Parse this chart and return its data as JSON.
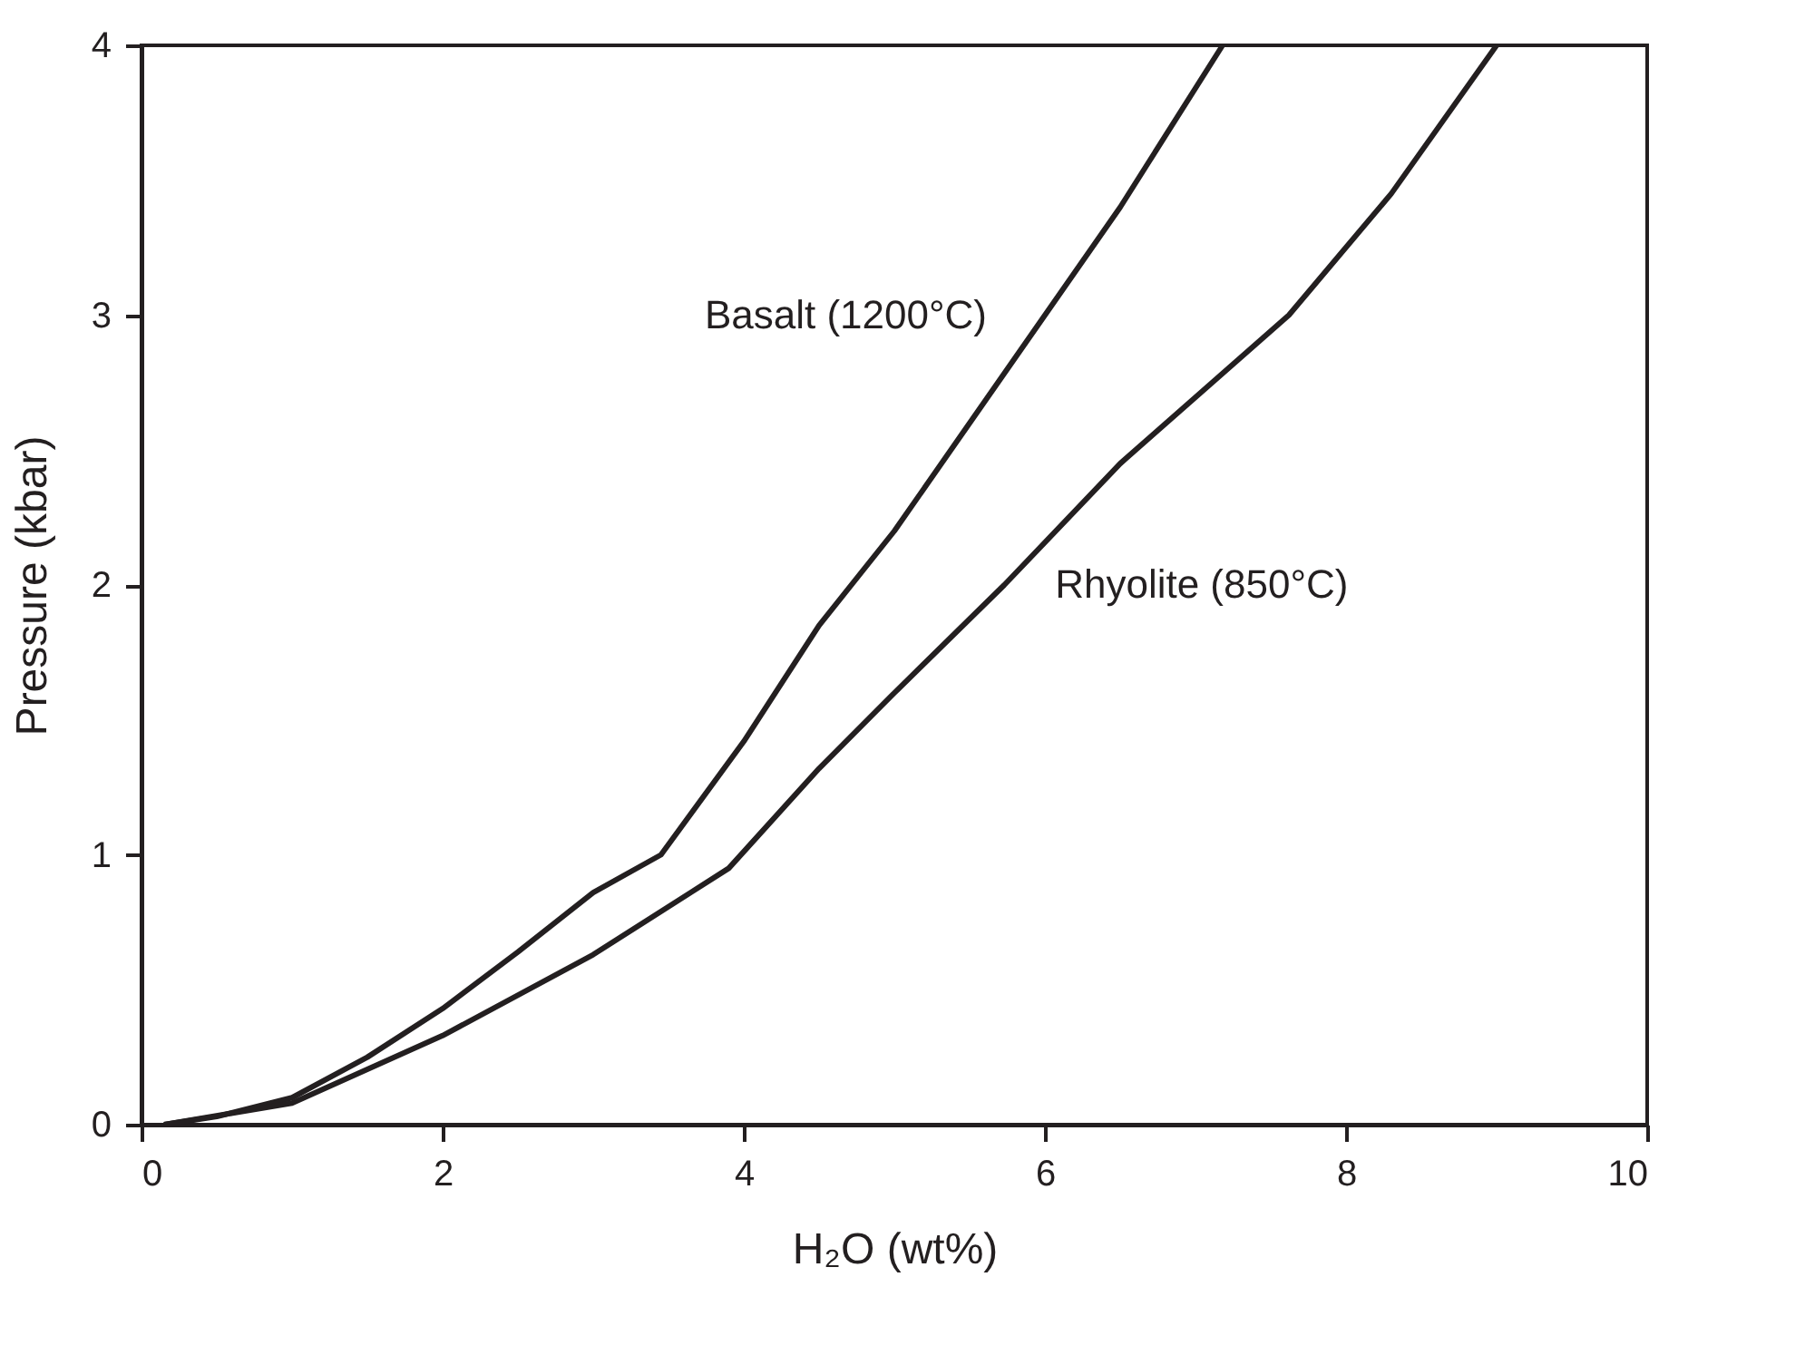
{
  "chart_data": {
    "type": "line",
    "xlabel": "H₂O (wt%)",
    "ylabel": "Pressure (kbar)",
    "xlim": [
      0,
      10
    ],
    "ylim": [
      0,
      4
    ],
    "xticks": [
      0,
      2,
      4,
      6,
      8,
      10
    ],
    "yticks": [
      0,
      1,
      2,
      3,
      4
    ],
    "grid": false,
    "legend": false,
    "marker": "none",
    "line_style": "solid",
    "series": [
      {
        "name": "Basalt (1200°C)",
        "color": "#231f20",
        "x": [
          0.15,
          0.5,
          1,
          1.5,
          2,
          2.5,
          3,
          3.45,
          4,
          4.5,
          5,
          5.5,
          6,
          6.5,
          7.18
        ],
        "values": [
          0,
          0.03,
          0.1,
          0.25,
          0.43,
          0.64,
          0.86,
          1.0,
          1.42,
          1.85,
          2.2,
          2.6,
          3.0,
          3.4,
          4
        ]
      },
      {
        "name": "Rhyolite (850°C)",
        "color": "#231f20",
        "x": [
          0.15,
          1,
          2,
          3,
          3.9,
          4.5,
          5,
          5.73,
          6.5,
          7.62,
          8.3,
          9.0
        ],
        "values": [
          0,
          0.08,
          0.33,
          0.63,
          0.95,
          1.32,
          1.6,
          2,
          2.45,
          3,
          3.45,
          4
        ]
      }
    ]
  }
}
